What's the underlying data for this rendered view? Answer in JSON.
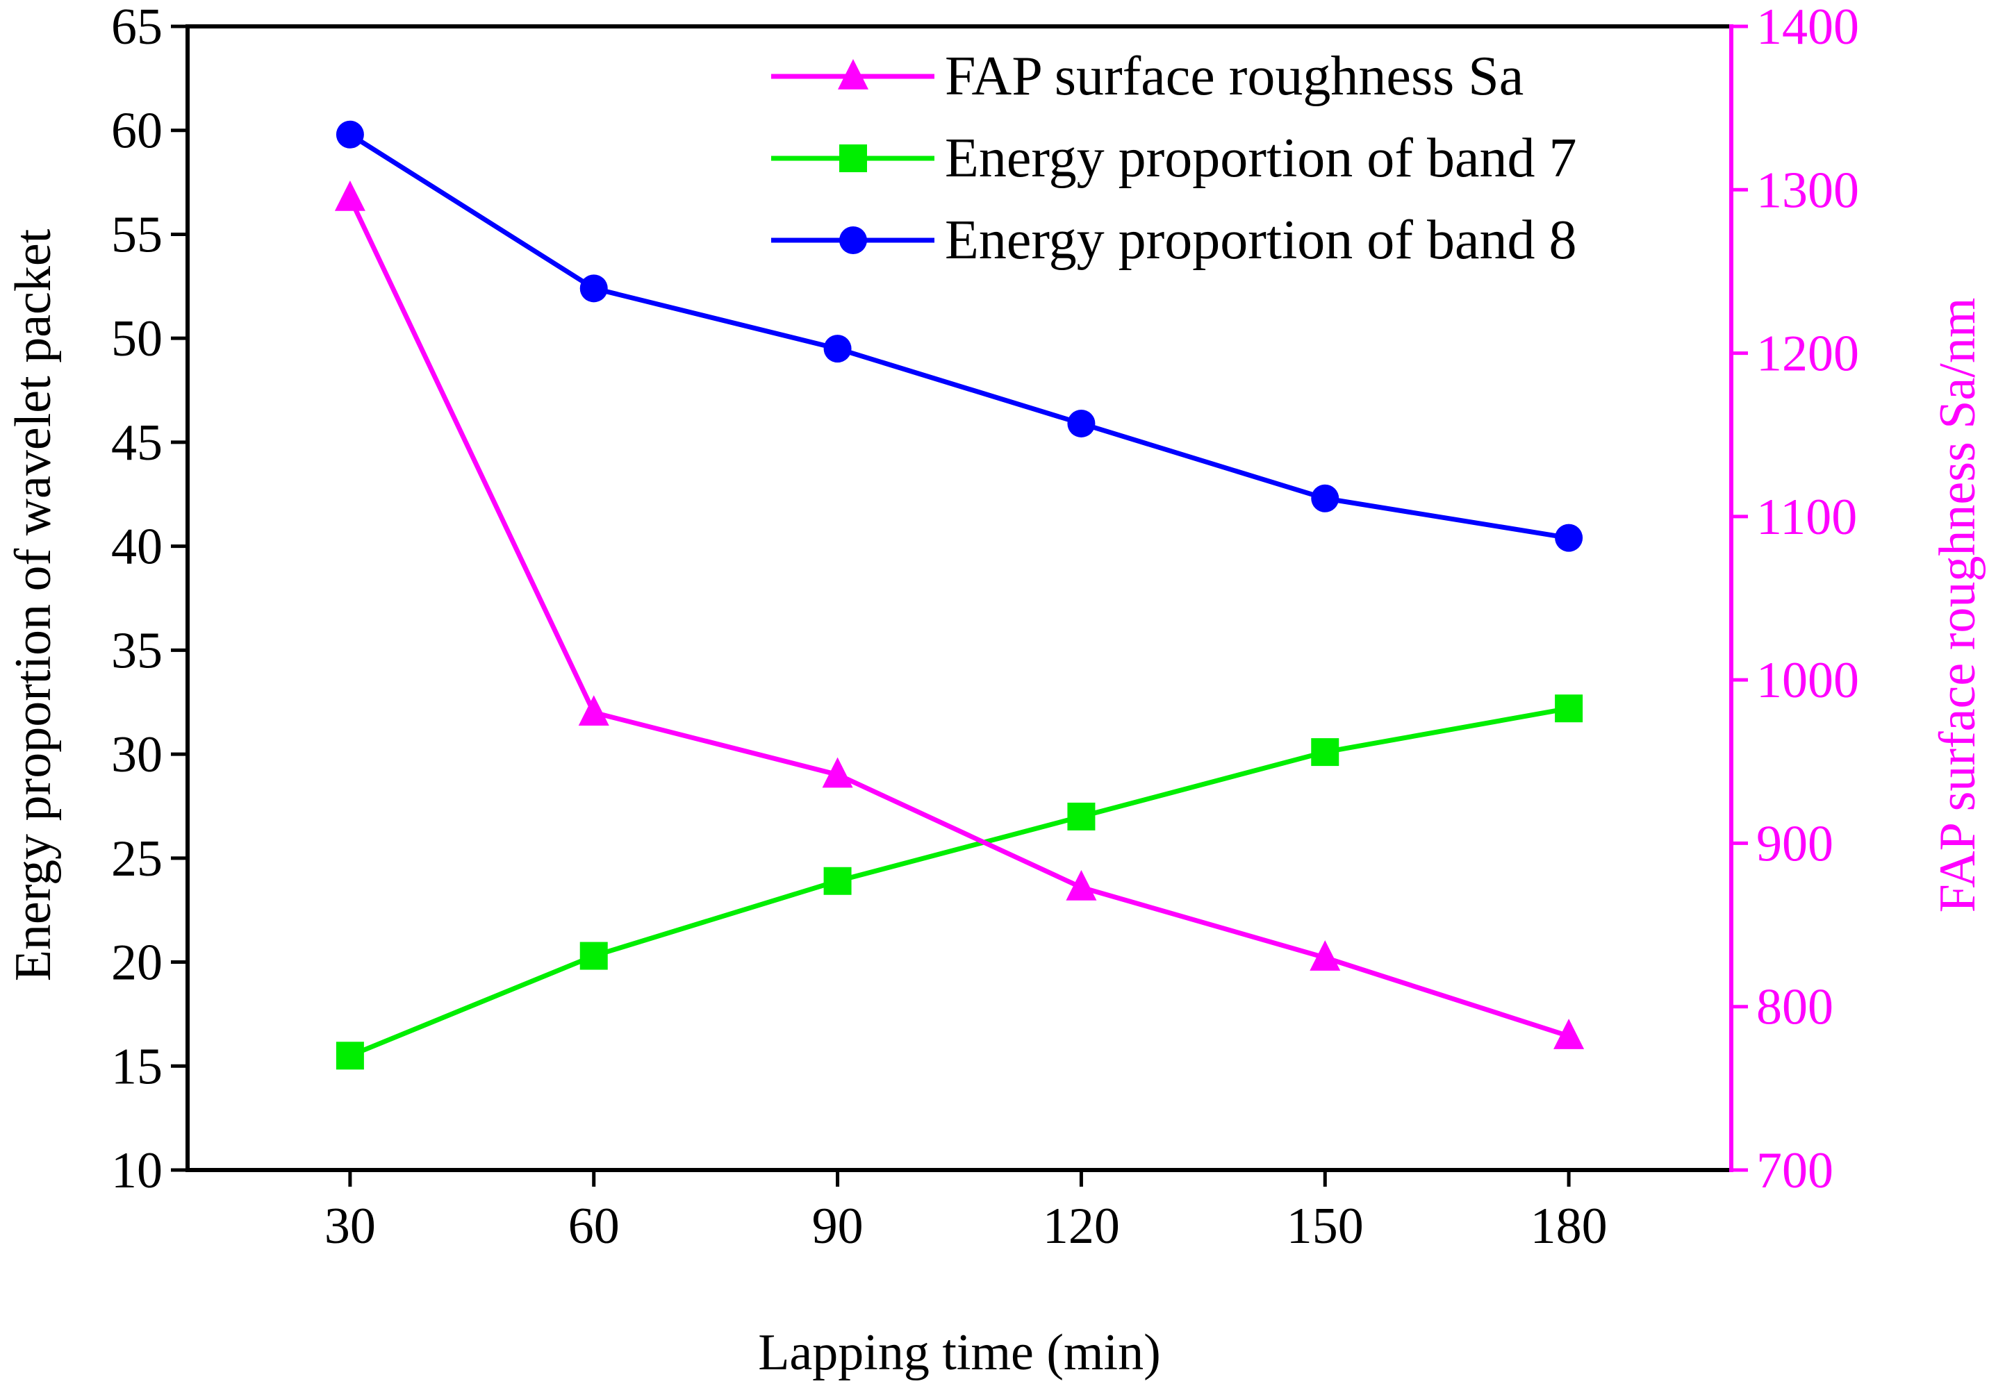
{
  "chart_data": {
    "type": "line",
    "title": "",
    "xlabel": "Lapping time (min)",
    "ylabel_left": "Energy proportion of wavelet packet",
    "ylabel_right": "FAP surface roughness Sa/nm",
    "x": [
      30,
      60,
      90,
      120,
      150,
      180
    ],
    "x_ticks": [
      "30",
      "60",
      "90",
      "120",
      "150",
      "180"
    ],
    "xlim": [
      10,
      200
    ],
    "ylim_left": [
      10,
      65
    ],
    "ylim_right": [
      700,
      1400
    ],
    "y_ticks_left": [
      "10",
      "15",
      "20",
      "25",
      "30",
      "35",
      "40",
      "45",
      "50",
      "55",
      "60",
      "65"
    ],
    "y_ticks_right": [
      "700",
      "800",
      "900",
      "1000",
      "1100",
      "1200",
      "1300",
      "1400"
    ],
    "legend_position": "top-right",
    "series": [
      {
        "name": "FAP surface roughness Sa",
        "axis": "right",
        "marker": "triangle",
        "color": "#FF00FF",
        "values": [
          1295,
          980,
          942,
          873,
          830,
          782
        ]
      },
      {
        "name": "Energy proportion of band 7",
        "axis": "left",
        "marker": "square",
        "color": "#00EE00",
        "values": [
          15.5,
          20.3,
          23.9,
          27.0,
          30.1,
          32.2
        ]
      },
      {
        "name": "Energy proportion of band 8",
        "axis": "left",
        "marker": "circle",
        "color": "#0000FF",
        "values": [
          59.8,
          52.4,
          49.5,
          45.9,
          42.3,
          40.4
        ]
      }
    ]
  }
}
